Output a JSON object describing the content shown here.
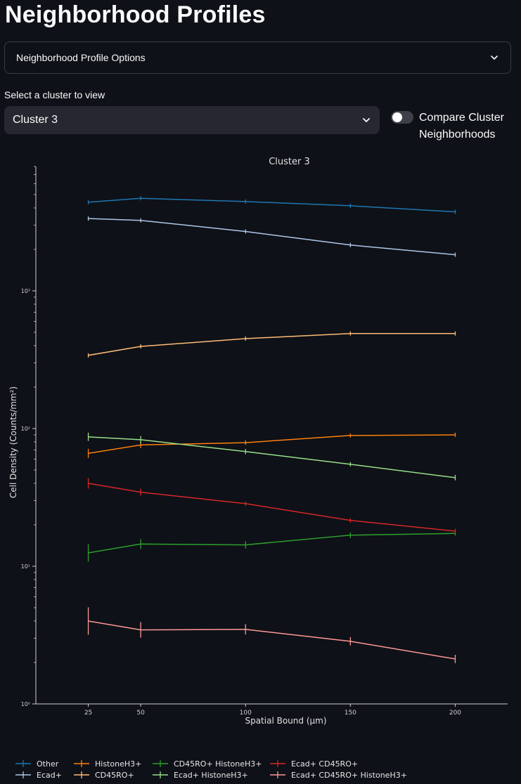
{
  "page": {
    "title": "Neighborhood Profiles"
  },
  "expander": {
    "label": "Neighborhood Profile Options"
  },
  "cluster_select": {
    "label": "Select a cluster to view",
    "value": "Cluster 3"
  },
  "compare_toggle": {
    "label": "Compare Cluster Neighborhoods",
    "checked": false
  },
  "chart_data": {
    "type": "line",
    "title": "Cluster 3",
    "xlabel": "Spatial Bound (µm)",
    "ylabel": "Cell Density (Counts/mm²)",
    "yscale": "log",
    "ylim": [
      1,
      8000
    ],
    "xlim": [
      0,
      225
    ],
    "x": [
      25,
      50,
      100,
      150,
      200
    ],
    "x_tick_labels": [
      "25",
      "50",
      "100",
      "150",
      "200"
    ],
    "y_tick_labels": [
      "10⁰",
      "10¹",
      "10²",
      "10³"
    ],
    "y_ticks": [
      1,
      10,
      100,
      1000
    ],
    "legend_position": "bottom",
    "series": [
      {
        "name": "Other",
        "color": "#1f77b4",
        "values": [
          4400,
          4700,
          4450,
          4150,
          3750
        ],
        "errors": [
          0,
          0,
          0,
          0,
          0
        ]
      },
      {
        "name": "Ecad+",
        "color": "#aec7e8",
        "values": [
          3350,
          3250,
          2700,
          2150,
          1830
        ],
        "errors": [
          0,
          0,
          0,
          0,
          0
        ]
      },
      {
        "name": "HistoneH3+",
        "color": "#ff7f0e",
        "values": [
          66,
          76,
          79,
          89,
          90
        ],
        "errors": [
          5,
          4,
          3,
          3,
          3
        ]
      },
      {
        "name": "CD45RO+",
        "color": "#ffbb78",
        "values": [
          340,
          395,
          450,
          490,
          490
        ],
        "errors": [
          10,
          10,
          10,
          10,
          10
        ]
      },
      {
        "name": "CD45RO+ HistoneH3+",
        "color": "#2ca02c",
        "values": [
          12.5,
          14.5,
          14.3,
          16.8,
          17.3
        ],
        "errors": [
          1.8,
          1.2,
          0.9,
          0.8,
          0.6
        ]
      },
      {
        "name": "Ecad+ HistoneH3+",
        "color": "#98df8a",
        "values": [
          87,
          83,
          68,
          55,
          44
        ],
        "errors": [
          6,
          5,
          3,
          2,
          2
        ]
      },
      {
        "name": "Ecad+ CD45RO+",
        "color": "#d62728",
        "values": [
          40,
          34.5,
          28.5,
          21.5,
          18
        ],
        "errors": [
          3.5,
          2,
          1,
          0.8,
          0.7
        ]
      },
      {
        "name": "Ecad+ CD45RO+ HistoneH3+",
        "color": "#ff9896",
        "values": [
          4.0,
          3.45,
          3.48,
          2.85,
          2.12
        ],
        "errors": [
          0.9,
          0.45,
          0.3,
          0.2,
          0.15
        ]
      }
    ]
  }
}
